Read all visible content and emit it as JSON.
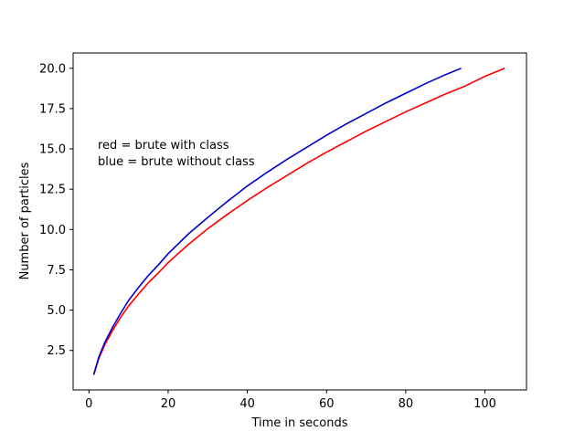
{
  "chart_data": {
    "type": "line",
    "title": "",
    "xlabel": "Time in seconds",
    "ylabel": "Number of particles",
    "xlim": [
      -4,
      110.5
    ],
    "ylim": [
      0.05,
      20.95
    ],
    "xticks": [
      0,
      20,
      40,
      60,
      80,
      100
    ],
    "xtick_labels": [
      "0",
      "20",
      "40",
      "60",
      "80",
      "100"
    ],
    "yticks": [
      2.5,
      5.0,
      7.5,
      10.0,
      12.5,
      15.0,
      17.5,
      20.0
    ],
    "ytick_labels": [
      "2.5",
      "5.0",
      "7.5",
      "10.0",
      "12.5",
      "15.0",
      "17.5",
      "20.0"
    ],
    "grid": false,
    "annotations": [
      "red = brute with class",
      "blue = brute without class"
    ],
    "series": [
      {
        "color": "#ff0000",
        "x": [
          1.2,
          2.5,
          4,
          6,
          8,
          10,
          12.5,
          15,
          17.5,
          20,
          25,
          30,
          35,
          40,
          45,
          50,
          55,
          60,
          65,
          70,
          75,
          80,
          85,
          90,
          95,
          100,
          105
        ],
        "y": [
          1.0,
          2.0,
          2.85,
          3.75,
          4.55,
          5.25,
          6.0,
          6.7,
          7.3,
          7.95,
          9.05,
          10.05,
          10.95,
          11.8,
          12.6,
          13.35,
          14.1,
          14.8,
          15.45,
          16.1,
          16.7,
          17.3,
          17.85,
          18.4,
          18.9,
          19.5,
          20.0
        ]
      },
      {
        "color": "#0000cc",
        "x": [
          1.2,
          2.5,
          4,
          6,
          8,
          10,
          12.5,
          15,
          17.5,
          20,
          25,
          30,
          35,
          40,
          45,
          50,
          55,
          60,
          65,
          70,
          75,
          80,
          85,
          90,
          94
        ],
        "y": [
          1.0,
          2.1,
          3.0,
          3.95,
          4.8,
          5.6,
          6.4,
          7.15,
          7.8,
          8.5,
          9.7,
          10.75,
          11.75,
          12.7,
          13.55,
          14.35,
          15.1,
          15.85,
          16.55,
          17.2,
          17.85,
          18.45,
          19.05,
          19.6,
          20.0
        ]
      }
    ]
  }
}
